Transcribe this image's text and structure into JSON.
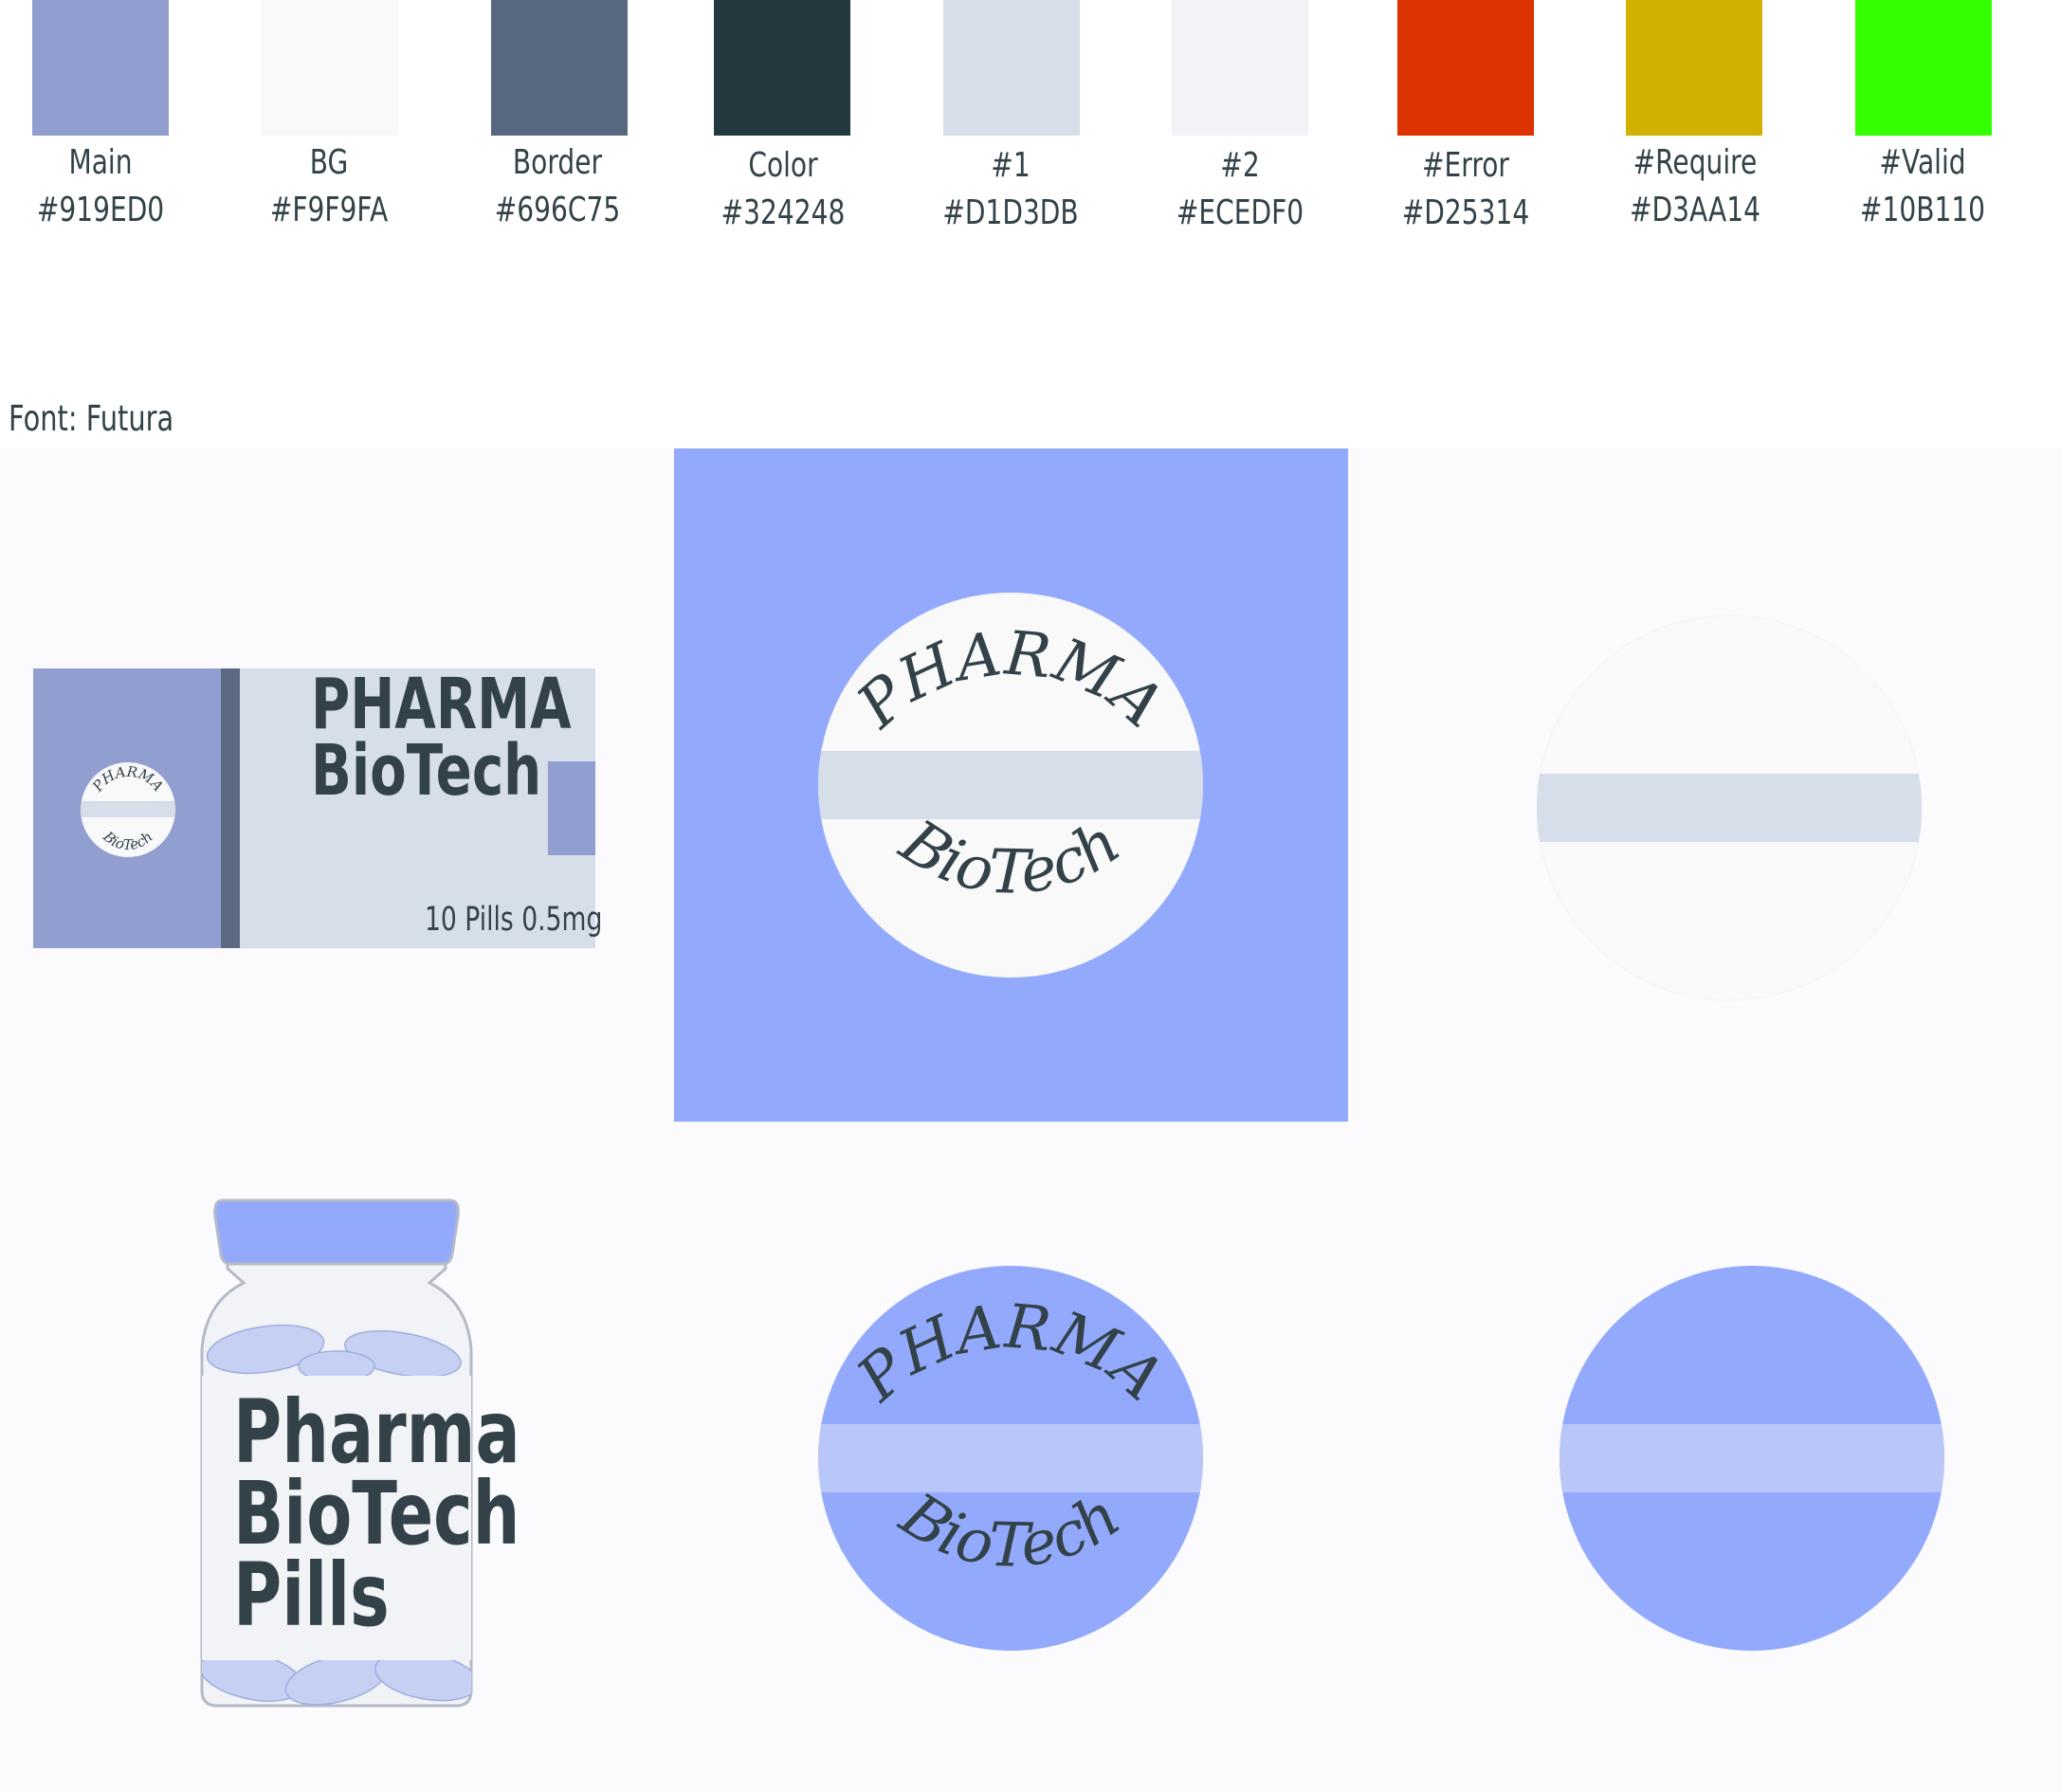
{
  "palette": [
    {
      "name": "Main",
      "hex": "#919ED0",
      "fill": "#919ED0"
    },
    {
      "name": "BG",
      "hex": "#F9F9FA",
      "fill": "#F9F9FA"
    },
    {
      "name": "Border",
      "hex": "#696C75",
      "fill": "#586880"
    },
    {
      "name": "Color",
      "hex": "#324248",
      "fill": "#24393F"
    },
    {
      "name": "#1",
      "hex": "#D1D3DB",
      "fill": "#D6DEEA"
    },
    {
      "name": "#2",
      "hex": "#ECEDF0",
      "fill": "#F2F3F6"
    },
    {
      "name": "#Error",
      "hex": "#D25314",
      "fill": "#DD3300"
    },
    {
      "name": "#Require",
      "hex": "#D3AA14",
      "fill": "#D1B100"
    },
    {
      "name": "#Valid",
      "hex": "#10B110",
      "fill": "#33FF00"
    }
  ],
  "font_note": "Font: Futura",
  "package": {
    "brand_line1": "PHARMA",
    "brand_line2": "BioTech",
    "dose": "10 Pills 0.5mg"
  },
  "logo": {
    "top_word": "PHARMA",
    "bottom_word": "BioTech"
  },
  "bottle": {
    "line1": "Pharma",
    "line2": "BioTech",
    "line3": "Pills"
  },
  "icon_names": [
    "pill-package-icon",
    "pill-logo-icon",
    "pill-bottle-icon",
    "pill-icon"
  ]
}
